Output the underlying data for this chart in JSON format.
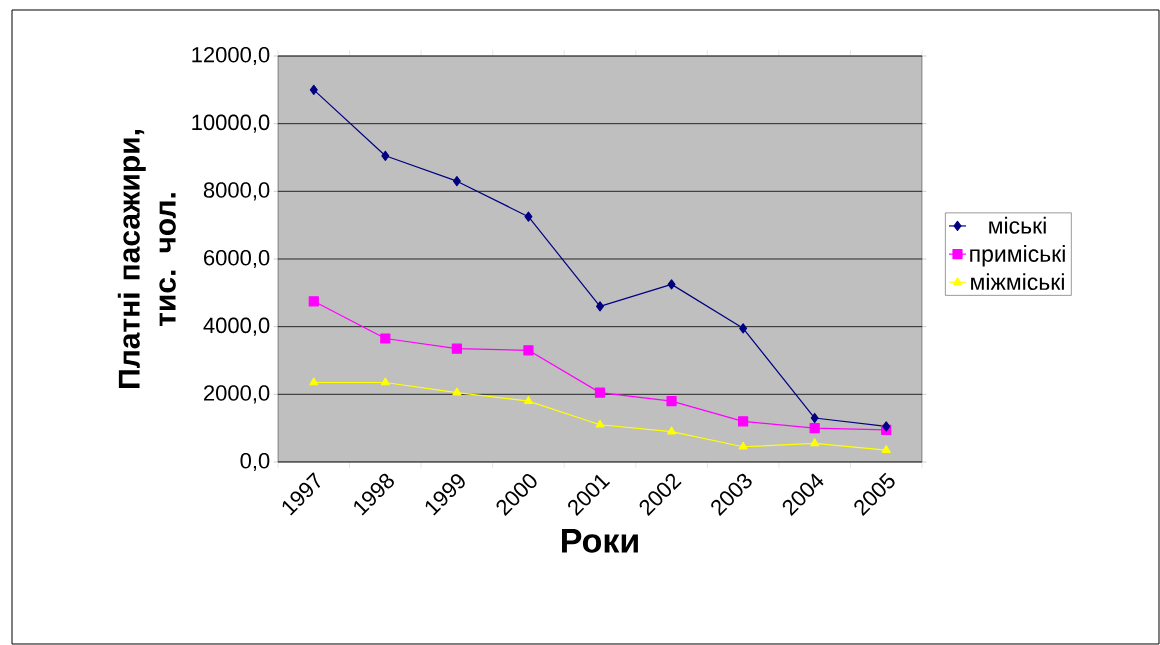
{
  "chart_data": {
    "type": "line",
    "xlabel": "Роки",
    "ylabel": "Платні пасажири, тис. чол.",
    "categories": [
      "1997",
      "1998",
      "1999",
      "2000",
      "2001",
      "2002",
      "2003",
      "2004",
      "2005"
    ],
    "series": [
      {
        "name": "міські",
        "color": "#000080",
        "marker": "diamond",
        "values": [
          11000,
          9050,
          8300,
          7250,
          4600,
          5250,
          3950,
          1300,
          1050
        ]
      },
      {
        "name": "приміські",
        "color": "#ff00ff",
        "marker": "square",
        "values": [
          4750,
          3650,
          3350,
          3300,
          2050,
          1800,
          1200,
          1000,
          950
        ]
      },
      {
        "name": "міжміські",
        "color": "#ffff00",
        "marker": "triangle",
        "values": [
          2350,
          2350,
          2050,
          1800,
          1100,
          900,
          450,
          550,
          350
        ]
      }
    ],
    "ylim": [
      0,
      12000
    ],
    "yticks": [
      {
        "value": 0,
        "label": "0,0"
      },
      {
        "value": 2000,
        "label": "2000,0"
      },
      {
        "value": 4000,
        "label": "4000,0"
      },
      {
        "value": 6000,
        "label": "6000,0"
      },
      {
        "value": 8000,
        "label": "8000,0"
      },
      {
        "value": 10000,
        "label": "10000,0"
      },
      {
        "value": 12000,
        "label": "12000,0"
      }
    ],
    "grid": "y",
    "legend": "right",
    "line_style": "solid"
  }
}
